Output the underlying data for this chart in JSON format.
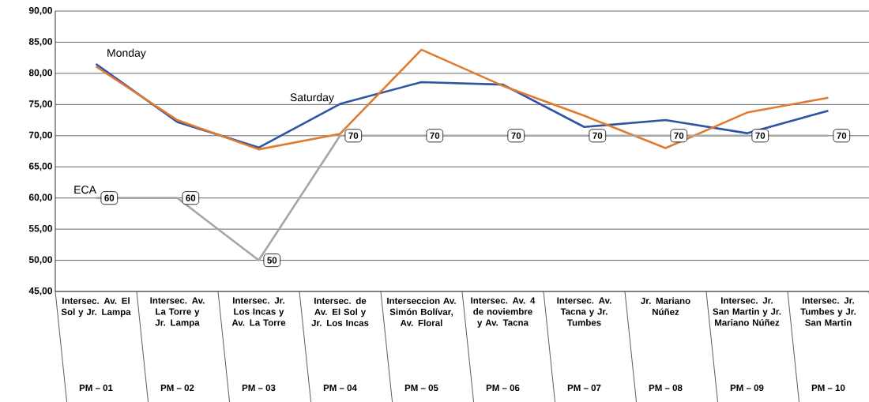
{
  "chart_data": {
    "type": "line",
    "categories": [
      "Intersec. Av. El Sol y Jr. Lampa",
      "Intersec. Av. La Torre y Jr. Lampa",
      "Intersec. Jr. Los Incas y Av. La Torre",
      "Intersec. de Av. El Sol y Jr. Los Incas",
      "Interseccion Av. Simón Bolívar, Av. Floral",
      "Intersec. Av. 4 de noviembre y Av. Tacna",
      "Intersec. Av. Tacna y Jr. Tumbes",
      "Jr. Mariano Núñez",
      "Intersec. Jr. San Martin y Jr. Mariano Núñez",
      "Intersec. Jr. Tumbes y Jr. San Martin"
    ],
    "series": [
      {
        "name": "Saturday",
        "color": "#2e54a4",
        "values": [
          81.5,
          72.2,
          68.1,
          75.1,
          78.6,
          78.2,
          71.4,
          72.5,
          70.4,
          74.0
        ]
      },
      {
        "name": "Monday",
        "color": "#e07b30",
        "values": [
          81.1,
          72.5,
          67.8,
          70.3,
          83.8,
          78.0,
          73.2,
          68.0,
          73.7,
          76.1
        ]
      },
      {
        "name": "ECA",
        "color": "#a6a6a6",
        "values": [
          60,
          60,
          50,
          70,
          70,
          70,
          70,
          70,
          70,
          70
        ],
        "value_labels": [
          "60",
          "60",
          "50",
          "70",
          "70",
          "70",
          "70",
          "70",
          "70",
          "70"
        ]
      }
    ],
    "ylim": [
      45,
      90
    ],
    "yticks": [
      {
        "value": 45,
        "label": "45,00"
      },
      {
        "value": 50,
        "label": "50,00"
      },
      {
        "value": 55,
        "label": "55,00"
      },
      {
        "value": 60,
        "label": "60,00"
      },
      {
        "value": 65,
        "label": "65,00"
      },
      {
        "value": 70,
        "label": "70,00"
      },
      {
        "value": 75,
        "label": "75,00"
      },
      {
        "value": 80,
        "label": "80,00"
      },
      {
        "value": 85,
        "label": "85,00"
      },
      {
        "value": 90,
        "label": "90,00"
      }
    ],
    "grid": "y",
    "marker": "none",
    "line_style": "solid",
    "annotations": [
      "PM – 01",
      "PM – 02",
      "PM – 03",
      "PM – 04",
      "PM – 05",
      "PM – 06",
      "PM – 07",
      "PM – 08",
      "PM – 09",
      "PM – 10"
    ]
  }
}
